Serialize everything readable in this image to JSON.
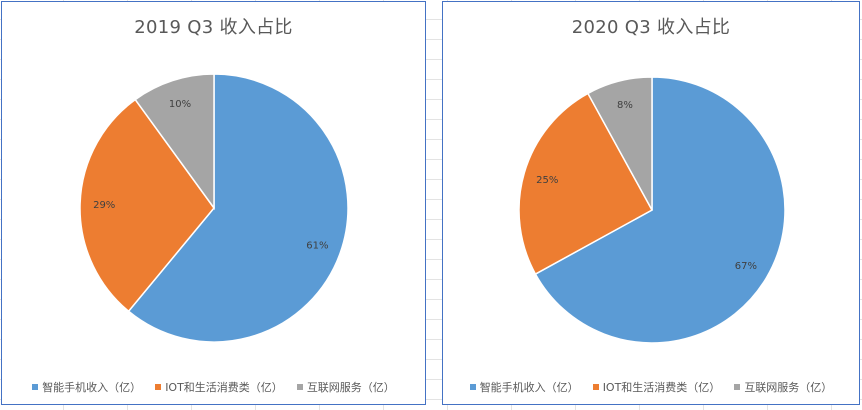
{
  "chart_data": [
    {
      "type": "pie",
      "title": "2019 Q3 收入占比",
      "categories": [
        "智能手机收入（亿）",
        "IOT和生活消费类（亿）",
        "互联网服务（亿）"
      ],
      "values": [
        61,
        29,
        10
      ],
      "labels": [
        "61%",
        "29%",
        "10%"
      ],
      "colors": [
        "#5b9bd5",
        "#ed7d31",
        "#a5a5a5"
      ],
      "legend_position": "bottom"
    },
    {
      "type": "pie",
      "title": "2020 Q3 收入占比",
      "categories": [
        "智能手机收入（亿）",
        "IOT和生活消费类（亿）",
        "互联网服务（亿）"
      ],
      "values": [
        67,
        25,
        8
      ],
      "labels": [
        "67%",
        "25%",
        "8%"
      ],
      "colors": [
        "#5b9bd5",
        "#ed7d31",
        "#a5a5a5"
      ],
      "legend_position": "bottom"
    }
  ]
}
